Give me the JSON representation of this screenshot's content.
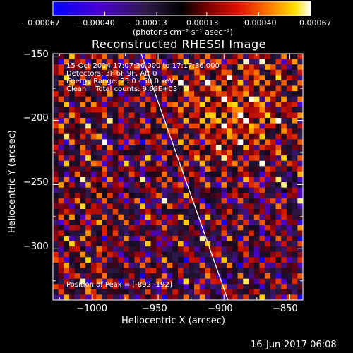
{
  "chart_data": {
    "type": "heatmap",
    "title": "Reconstructed RHESSI Image",
    "xlabel": "Heliocentric X (arcsec)",
    "ylabel": "Heliocentric Y (arcsec)",
    "xlim": [
      -1030,
      -840
    ],
    "ylim": [
      -340,
      -148
    ],
    "x_ticks": [
      -1000,
      -950,
      -900,
      -850
    ],
    "x_tick_labels": [
      "−1000",
      "−950",
      "−900",
      "−850"
    ],
    "y_ticks": [
      -150,
      -200,
      -250,
      -300
    ],
    "y_tick_labels": [
      "−150",
      "−200",
      "−250",
      "−300"
    ],
    "colorbar": {
      "min": -0.00067,
      "max": 0.00067,
      "ticks": [
        -0.00067,
        -0.0004,
        -0.00013,
        0.00013,
        0.0004,
        0.00067
      ],
      "tick_labels": [
        "−0.00067",
        "−0.00040",
        "−0.00013",
        "0.00013",
        "0.00040",
        "0.00067"
      ],
      "unit_label": "(photons cm⁻² s⁻¹ asec⁻²)",
      "colors": [
        "#0000ff",
        "#5a00c8",
        "#3c1a4e",
        "#000000",
        "#8b0000",
        "#e01000",
        "#ff7000",
        "#ffd000",
        "#ffffff"
      ]
    },
    "info_lines": [
      "15-Oct-2014 17:07:36.000 to 17:17:36.000",
      "Detectors: 3F 6F 9F, Att 0",
      "Energy Range: 25.0 - 50.0 keV",
      "Clean    Total counts: 9.69E+03"
    ],
    "peak_text": "Position of Peak = [-892,-192]",
    "peak": [
      -892,
      -192
    ],
    "limb_line": [
      [
        -963,
        -148
      ],
      [
        -897,
        -340
      ]
    ]
  },
  "timestamp": "16-Jun-2017 06:08"
}
